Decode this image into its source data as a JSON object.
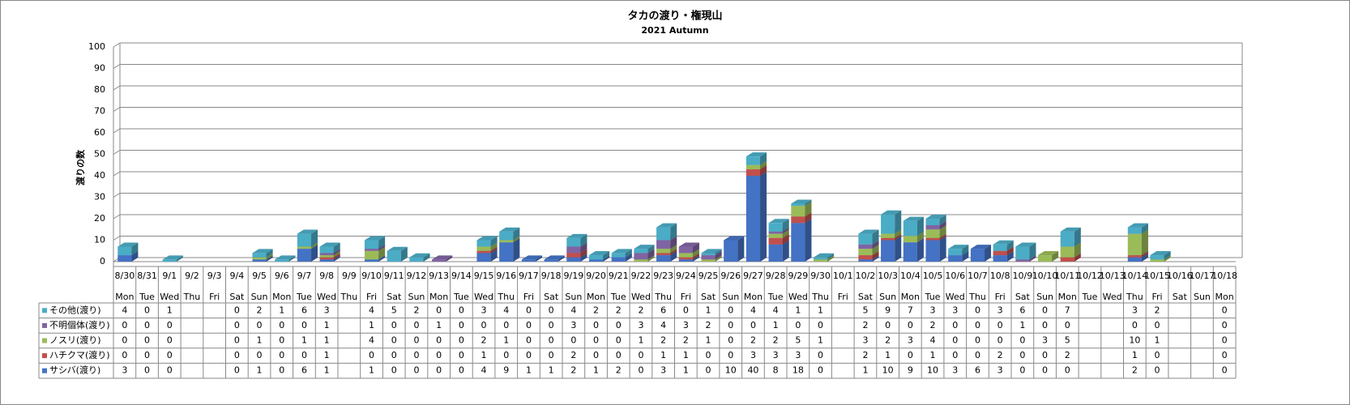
{
  "chart_data": {
    "type": "bar",
    "stacked": true,
    "title": "タカの渡り・権現山",
    "subtitle": "2021 Autumn",
    "y_label": "渡りの数",
    "categories": [
      "8/30",
      "8/31",
      "9/1",
      "9/2",
      "9/3",
      "9/4",
      "9/5",
      "9/6",
      "9/7",
      "9/8",
      "9/9",
      "9/10",
      "9/11",
      "9/12",
      "9/13",
      "9/14",
      "9/15",
      "9/16",
      "9/17",
      "9/18",
      "9/19",
      "9/20",
      "9/21",
      "9/22",
      "9/23",
      "9/24",
      "9/25",
      "9/26",
      "9/27",
      "9/28",
      "9/29",
      "9/30",
      "10/1",
      "10/2",
      "10/3",
      "10/4",
      "10/5",
      "10/6",
      "10/7",
      "10/8",
      "10/9",
      "10/10",
      "10/11",
      "10/12",
      "10/13",
      "10/14",
      "10/15",
      "10/16",
      "10/17",
      "10/18"
    ],
    "weekdays": [
      "Mon",
      "Tue",
      "Wed",
      "Thu",
      "Fri",
      "Sat",
      "Sun",
      "Mon",
      "Tue",
      "Wed",
      "Thu",
      "Fri",
      "Sat",
      "Sun",
      "Mon",
      "Tue",
      "Wed",
      "Thu",
      "Fri",
      "Sat",
      "Sun",
      "Mon",
      "Tue",
      "Wed",
      "Thu",
      "Fri",
      "Sat",
      "Sun",
      "Mon",
      "Tue",
      "Wed",
      "Thu",
      "Fri",
      "Sat",
      "Sun",
      "Mon",
      "Tue",
      "Wed",
      "Thu",
      "Fri",
      "Sat",
      "Sun",
      "Mon",
      "Tue",
      "Wed",
      "Thu",
      "Fri",
      "Sat",
      "Sun",
      "Mon"
    ],
    "series": [
      {
        "name": "その他(渡り)",
        "color": "#4bacc6",
        "values": [
          4,
          0,
          1,
          null,
          null,
          0,
          2,
          1,
          6,
          3,
          null,
          4,
          5,
          2,
          0,
          0,
          3,
          4,
          0,
          0,
          4,
          2,
          2,
          2,
          6,
          0,
          1,
          0,
          4,
          4,
          1,
          1,
          null,
          5,
          9,
          7,
          3,
          3,
          0,
          3,
          6,
          0,
          7,
          null,
          null,
          3,
          2,
          null,
          null,
          0
        ]
      },
      {
        "name": "不明個体(渡り)",
        "color": "#8064a2",
        "values": [
          0,
          0,
          0,
          null,
          null,
          0,
          0,
          0,
          0,
          1,
          null,
          1,
          0,
          0,
          1,
          0,
          0,
          0,
          0,
          0,
          3,
          0,
          0,
          3,
          4,
          3,
          2,
          0,
          0,
          1,
          0,
          0,
          null,
          2,
          0,
          0,
          2,
          0,
          0,
          0,
          1,
          0,
          0,
          null,
          null,
          0,
          0,
          null,
          null,
          0
        ]
      },
      {
        "name": "ノスリ(渡り)",
        "color": "#9bbb59",
        "values": [
          0,
          0,
          0,
          null,
          null,
          0,
          1,
          0,
          1,
          1,
          null,
          4,
          0,
          0,
          0,
          0,
          2,
          1,
          0,
          0,
          0,
          0,
          0,
          1,
          2,
          2,
          1,
          0,
          2,
          2,
          5,
          1,
          null,
          3,
          2,
          3,
          4,
          0,
          0,
          0,
          0,
          3,
          5,
          null,
          null,
          10,
          1,
          null,
          null,
          0
        ]
      },
      {
        "name": "ハチクマ(渡り)",
        "color": "#c0504d",
        "values": [
          0,
          0,
          0,
          null,
          null,
          0,
          0,
          0,
          0,
          1,
          null,
          0,
          0,
          0,
          0,
          0,
          1,
          0,
          0,
          0,
          2,
          0,
          0,
          0,
          1,
          1,
          0,
          0,
          3,
          3,
          3,
          0,
          null,
          2,
          1,
          0,
          1,
          0,
          0,
          2,
          0,
          0,
          2,
          null,
          null,
          1,
          0,
          null,
          null,
          0
        ]
      },
      {
        "name": "サシバ(渡り)",
        "color": "#4472c4",
        "values": [
          3,
          0,
          0,
          null,
          null,
          0,
          1,
          0,
          6,
          1,
          null,
          1,
          0,
          0,
          0,
          0,
          4,
          9,
          1,
          1,
          2,
          1,
          2,
          0,
          3,
          1,
          0,
          10,
          40,
          8,
          18,
          0,
          null,
          1,
          10,
          9,
          10,
          3,
          6,
          3,
          0,
          0,
          0,
          null,
          null,
          2,
          0,
          null,
          null,
          0
        ]
      }
    ],
    "ylim": [
      0,
      100
    ],
    "yticks": [
      0,
      10,
      20,
      30,
      40,
      50,
      60,
      70,
      80,
      90,
      100
    ],
    "grid": true
  }
}
